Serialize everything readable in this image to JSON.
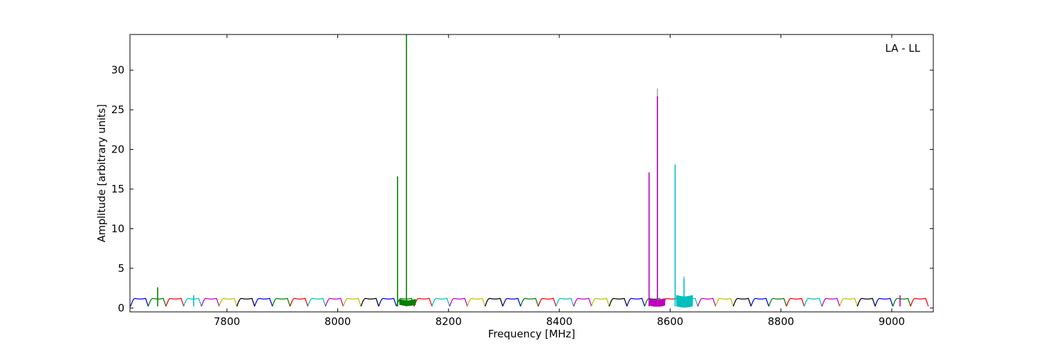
{
  "chart_data": {
    "type": "line",
    "title": "",
    "annotation": "LA - LL",
    "xlabel": "Frequency [MHz]",
    "ylabel": "Amplitude [arbitrary units]",
    "xlim": [
      7625,
      9075
    ],
    "ylim": [
      -0.5,
      34.5
    ],
    "xticks": [
      7800,
      8000,
      8200,
      8400,
      8600,
      8800,
      9000
    ],
    "yticks": [
      0,
      5,
      10,
      15,
      20,
      25,
      30
    ],
    "grid": false,
    "legend": "none",
    "band": {
      "start": 7626,
      "step": 32,
      "count": 45,
      "base": 0.2,
      "plateau": 1.2,
      "colors": [
        "#0000ff",
        "#008000",
        "#ff0000",
        "#00bfbf",
        "#bf00bf",
        "#bfbf00",
        "#000000"
      ],
      "start_color_index": 0
    },
    "spikes": [
      {
        "x": 7675,
        "y": 2.6,
        "color": "#008000"
      },
      {
        "x": 7740,
        "y": 1.6,
        "color": "#00bfbf"
      },
      {
        "x": 8108,
        "y": 16.6,
        "color": "#008000"
      },
      {
        "x": 8124,
        "y": 34.5,
        "color": "#008000"
      },
      {
        "x": 8562,
        "y": 17.1,
        "color": "#bf00bf"
      },
      {
        "x": 8577,
        "y": 27.7,
        "color": "#b0b0b0"
      },
      {
        "x": 8577,
        "y": 26.7,
        "color": "#bf00bf"
      },
      {
        "x": 8609,
        "y": 18.1,
        "color": "#00bfbf"
      },
      {
        "x": 8625,
        "y": 4.0,
        "color": "#b0b0b0"
      },
      {
        "x": 8625,
        "y": 3.7,
        "color": "#00bfbf"
      },
      {
        "x": 9015,
        "y": 1.6,
        "color": "#bf00bf"
      }
    ],
    "noisy_regions": [
      {
        "x0": 8112,
        "x1": 8140,
        "y0": 0.4,
        "y1": 1.1,
        "color": "#008000"
      },
      {
        "x0": 8563,
        "x1": 8590,
        "y0": 0.3,
        "y1": 1.2,
        "color": "#bf00bf"
      },
      {
        "x0": 8612,
        "x1": 8640,
        "y0": 0.2,
        "y1": 1.6,
        "color": "#00bfbf"
      }
    ]
  }
}
